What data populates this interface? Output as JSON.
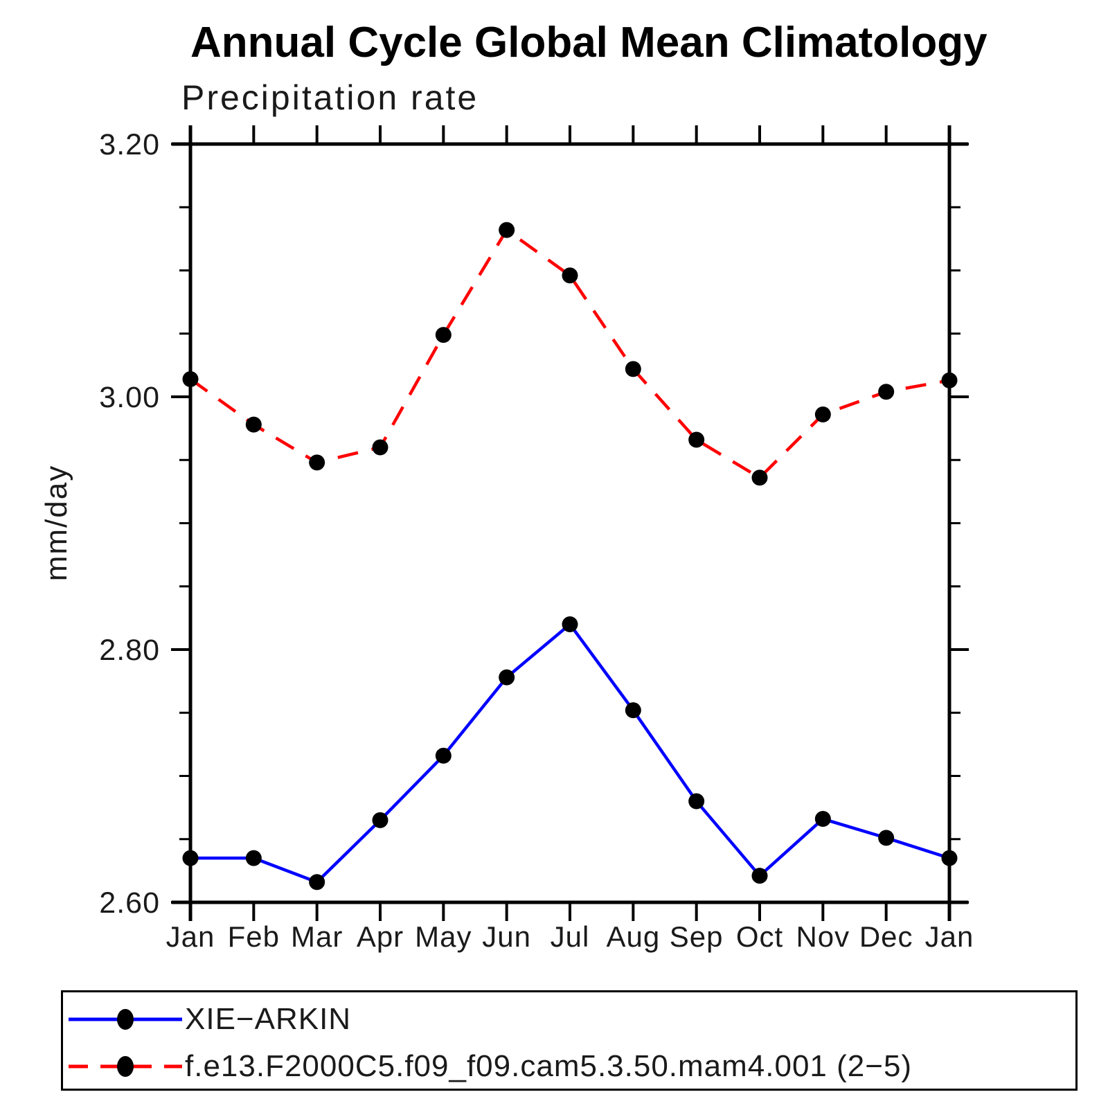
{
  "chart_data": {
    "type": "line",
    "title": "Annual Cycle Global Mean Climatology",
    "subtitle": "Precipitation rate",
    "ylabel": "mm/day",
    "categories": [
      "Jan",
      "Feb",
      "Mar",
      "Apr",
      "May",
      "Jun",
      "Jul",
      "Aug",
      "Sep",
      "Oct",
      "Nov",
      "Dec",
      "Jan"
    ],
    "ylim": [
      2.6,
      3.2
    ],
    "yticks_major": [
      2.6,
      2.8,
      3.0,
      3.2
    ],
    "ytick_labels": [
      "2.60",
      "2.80",
      "3.00",
      "3.20"
    ],
    "ytick_minor_step": 0.05,
    "grid": false,
    "legend_position": "bottom",
    "axis_color": "#000000",
    "marker_color": "#000000",
    "series": [
      {
        "name": "XIE−ARKIN",
        "color": "#0000ff",
        "style": "solid",
        "marker": "circle",
        "values": [
          2.635,
          2.635,
          2.616,
          2.665,
          2.716,
          2.778,
          2.82,
          2.752,
          2.68,
          2.621,
          2.666,
          2.651,
          2.635
        ]
      },
      {
        "name": "f.e13.F2000C5.f09_f09.cam5.3.50.mam4.001 (2−5)",
        "color": "#ff0000",
        "style": "dashed",
        "marker": "circle",
        "values": [
          3.014,
          2.978,
          2.948,
          2.96,
          3.049,
          3.132,
          3.096,
          3.022,
          2.966,
          2.936,
          2.986,
          3.004,
          3.013
        ]
      }
    ]
  }
}
